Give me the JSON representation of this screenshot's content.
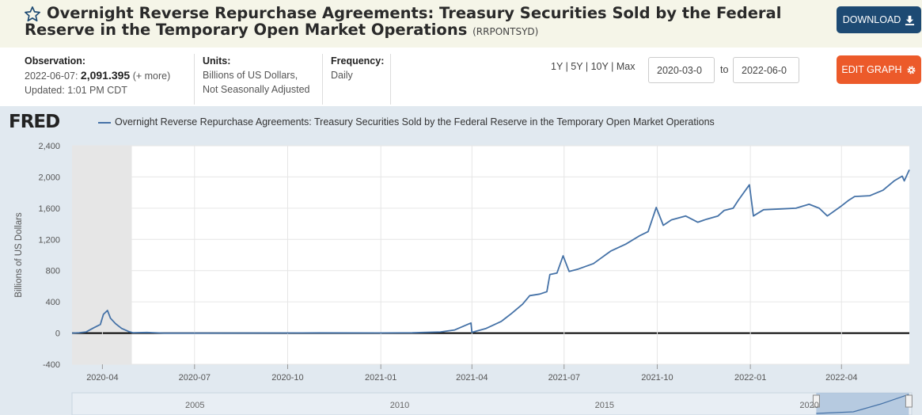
{
  "header": {
    "title": "Overnight Reverse Repurchase Agreements: Treasury Securities Sold by the Federal Reserve in the Temporary Open Market Operations",
    "series_id": "(RRPONTSYD)",
    "download_label": "DOWNLOAD"
  },
  "meta": {
    "observation_label": "Observation:",
    "observation_date": "2022-06-07:",
    "observation_value": "2,091.395",
    "observation_more": "(+ more)",
    "updated": "Updated: 1:01 PM CDT",
    "units_label": "Units:",
    "units_line1": "Billions of US Dollars,",
    "units_line2": "Not Seasonally Adjusted",
    "frequency_label": "Frequency:",
    "frequency_value": "Daily"
  },
  "controls": {
    "range_1y": "1Y",
    "range_5y": "5Y",
    "range_10y": "10Y",
    "range_max": "Max",
    "range_sep": "|",
    "start_date": "2020-03-0",
    "to_label": "to",
    "end_date": "2022-06-0",
    "edit_label": "EDIT GRAPH"
  },
  "chart_data": {
    "type": "line",
    "title": "",
    "logo": "FRED",
    "ylabel": "Billions of US Dollars",
    "ylim": [
      -400,
      2400
    ],
    "yticks": [
      -400,
      0,
      400,
      800,
      1200,
      1600,
      2000,
      2400
    ],
    "ytick_labels": [
      "-400",
      "0",
      "400",
      "800",
      "1,200",
      "1,600",
      "2,000",
      "2,400"
    ],
    "xlim": [
      "2020-03-02",
      "2022-06-07"
    ],
    "xtick_labels": [
      "2020-04",
      "2020-07",
      "2020-10",
      "2021-01",
      "2021-04",
      "2021-07",
      "2021-10",
      "2022-01",
      "2022-04"
    ],
    "xtick_dates": [
      "2020-04-01",
      "2020-07-01",
      "2020-10-01",
      "2021-01-01",
      "2021-04-01",
      "2021-07-01",
      "2021-10-01",
      "2022-01-01",
      "2022-04-01"
    ],
    "grid": true,
    "recession_shading": [
      "2020-03-02",
      "2020-04-30"
    ],
    "legend_position": "top-left",
    "series": [
      {
        "name": "Overnight Reverse Repurchase Agreements: Treasury Securities Sold by the Federal Reserve in the Temporary Open Market Operations",
        "color": "#4572a7",
        "x": [
          "2020-03-02",
          "2020-03-09",
          "2020-03-16",
          "2020-03-23",
          "2020-03-30",
          "2020-04-02",
          "2020-04-06",
          "2020-04-09",
          "2020-04-14",
          "2020-04-20",
          "2020-04-27",
          "2020-05-01",
          "2020-05-15",
          "2020-06-01",
          "2020-07-01",
          "2020-09-01",
          "2020-11-01",
          "2021-01-01",
          "2021-02-01",
          "2021-03-01",
          "2021-03-15",
          "2021-03-31",
          "2021-04-01",
          "2021-04-15",
          "2021-04-30",
          "2021-05-10",
          "2021-05-21",
          "2021-05-28",
          "2021-06-07",
          "2021-06-14",
          "2021-06-17",
          "2021-06-24",
          "2021-06-30",
          "2021-07-06",
          "2021-07-15",
          "2021-07-30",
          "2021-08-16",
          "2021-08-31",
          "2021-09-14",
          "2021-09-22",
          "2021-09-30",
          "2021-10-07",
          "2021-10-15",
          "2021-10-29",
          "2021-11-10",
          "2021-11-19",
          "2021-11-30",
          "2021-12-06",
          "2021-12-15",
          "2021-12-20",
          "2021-12-31",
          "2022-01-04",
          "2022-01-14",
          "2022-01-31",
          "2022-02-15",
          "2022-02-28",
          "2022-03-10",
          "2022-03-18",
          "2022-03-31",
          "2022-04-08",
          "2022-04-14",
          "2022-04-29",
          "2022-05-12",
          "2022-05-23",
          "2022-05-31",
          "2022-06-02",
          "2022-06-07"
        ],
        "values": [
          0,
          5,
          15,
          65,
          110,
          240,
          290,
          190,
          120,
          60,
          20,
          5,
          8,
          0,
          0,
          1,
          3,
          2,
          4,
          15,
          40,
          130,
          10,
          60,
          150,
          250,
          370,
          480,
          500,
          530,
          750,
          770,
          990,
          790,
          820,
          890,
          1050,
          1140,
          1250,
          1300,
          1610,
          1380,
          1450,
          1500,
          1420,
          1460,
          1500,
          1570,
          1600,
          1700,
          1900,
          1500,
          1580,
          1590,
          1600,
          1650,
          1600,
          1500,
          1620,
          1700,
          1750,
          1760,
          1830,
          1950,
          2010,
          1950,
          2091.395
        ]
      }
    ]
  },
  "navigator": {
    "labels": [
      "2005",
      "2010",
      "2015",
      "2020"
    ],
    "label_years": [
      2005,
      2010,
      2015,
      2020
    ],
    "year_range": [
      2002,
      2022.5
    ],
    "window": [
      2020.17,
      2022.43
    ]
  }
}
